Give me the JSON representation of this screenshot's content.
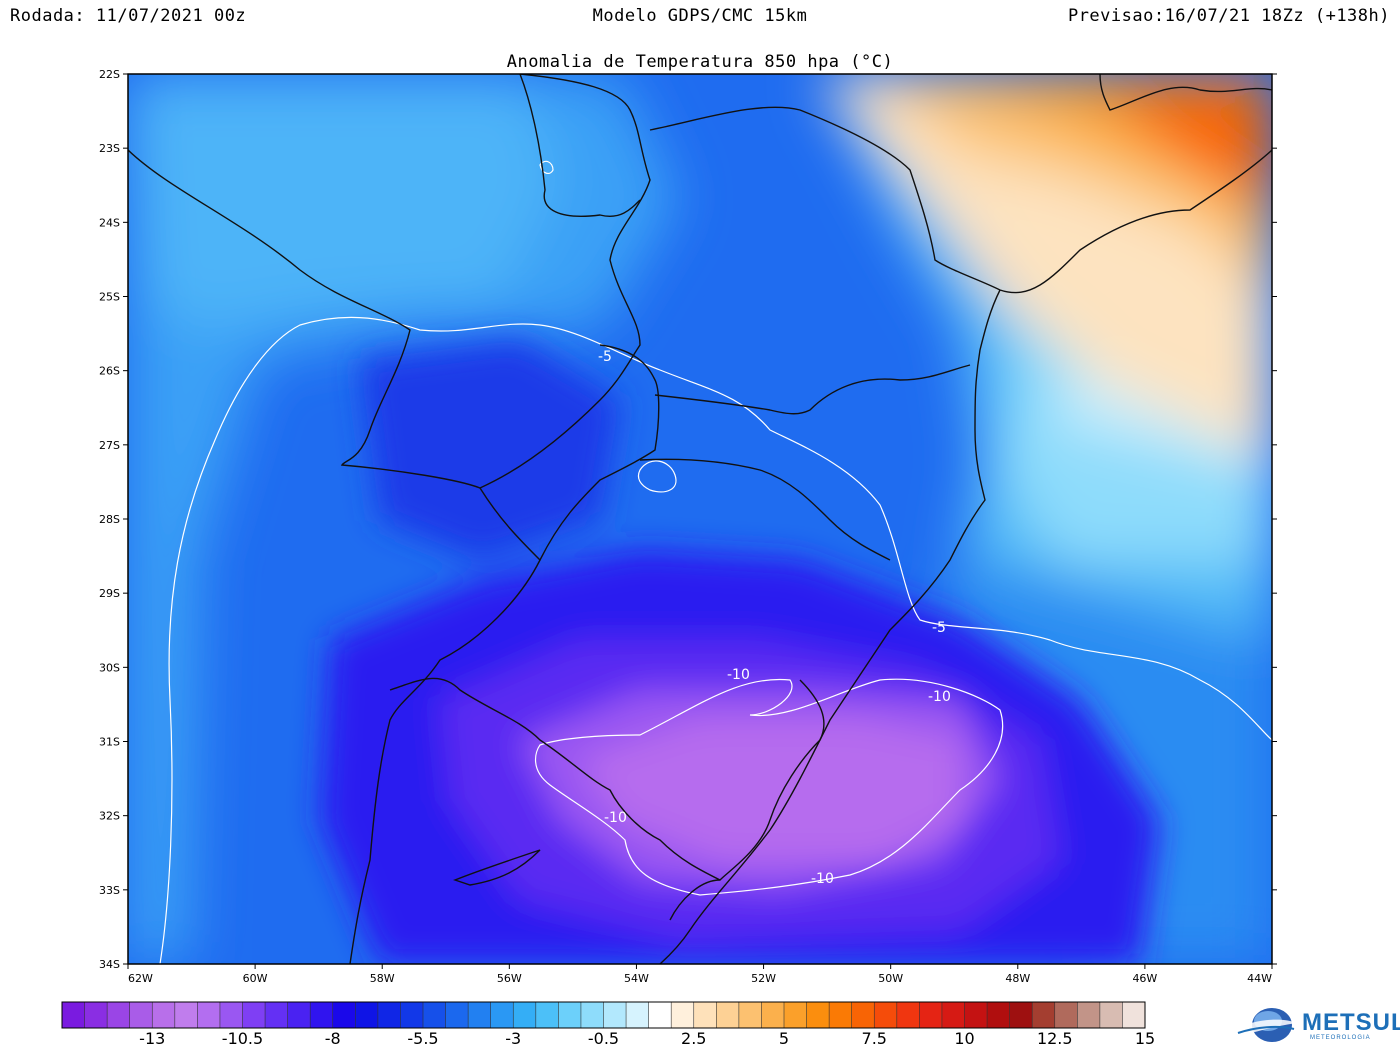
{
  "header": {
    "left": "Rodada: 11/07/2021 00z",
    "center": "Modelo GDPS/CMC 15km",
    "right": "Previsao:16/07/21 18Zz (+138h)"
  },
  "map": {
    "title": "Anomalia de Temperatura 850 hpa (°C)",
    "lat_labels": [
      "22S",
      "23S",
      "24S",
      "25S",
      "26S",
      "27S",
      "28S",
      "29S",
      "30S",
      "31S",
      "32S",
      "33S",
      "34S"
    ],
    "lon_labels": [
      "62W",
      "60W",
      "58W",
      "56W",
      "54W",
      "52W",
      "50W",
      "48W",
      "46W",
      "44W"
    ],
    "contour_labels": [
      "-5",
      "-5",
      "-10",
      "-10",
      "-10",
      "-10"
    ]
  },
  "colorbar": {
    "colors": [
      "#7a1be0",
      "#8a2ee3",
      "#9a45e6",
      "#a95ce8",
      "#b86fea",
      "#c07ded",
      "#b36ef0",
      "#9a57f2",
      "#7f3ff4",
      "#6430f4",
      "#4a22f2",
      "#3014ef",
      "#1a08ea",
      "#0f14e6",
      "#1026e6",
      "#1238e8",
      "#1650ea",
      "#1b68ee",
      "#2280f1",
      "#2a98f4",
      "#34aef6",
      "#4cc0f8",
      "#6cd0fa",
      "#8edcfb",
      "#b2e8fd",
      "#d6f3fe",
      "#ffffff",
      "#fff0dc",
      "#fee1ba",
      "#fdd195",
      "#fcc170",
      "#fbb04c",
      "#fba02a",
      "#fb8e0e",
      "#fa7a05",
      "#f86405",
      "#f54c0a",
      "#f03610",
      "#e52414",
      "#d61a14",
      "#c41212",
      "#b00e0e",
      "#9e1010",
      "#a43e30",
      "#b06a5c",
      "#c29488",
      "#d8bcb2",
      "#f0e2dc"
    ],
    "labels": [
      "-13",
      "-10.5",
      "-8",
      "-5.5",
      "-3",
      "-0.5",
      "2.5",
      "5",
      "7.5",
      "10",
      "12.5",
      "15"
    ]
  },
  "logo": {
    "text": "METSUL",
    "subtext": "METEOROLOGIA"
  }
}
